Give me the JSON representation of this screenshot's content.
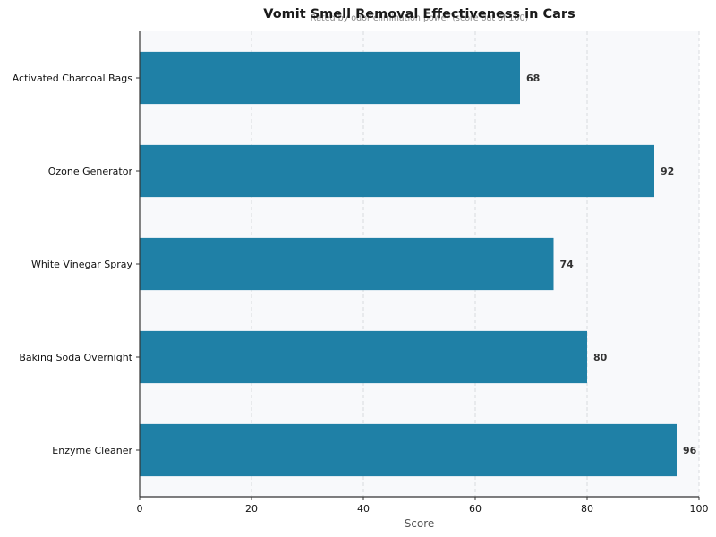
{
  "chart_data": {
    "type": "bar",
    "orientation": "horizontal",
    "title": "Vomit Smell Removal Effectiveness in Cars",
    "subtitle": "Rated by odor elimination power (score out of 100)",
    "xlabel": "Score",
    "ylabel": "",
    "xlim": [
      0,
      100
    ],
    "xticks": [
      0,
      20,
      40,
      60,
      80,
      100
    ],
    "categories": [
      "Activated Charcoal Bags",
      "Ozone Generator",
      "White Vinegar Spray",
      "Baking Soda Overnight",
      "Enzyme Cleaner"
    ],
    "values": [
      68,
      92,
      74,
      80,
      96
    ],
    "grid": "x-dashed",
    "bar_color": "#1f80a6",
    "plot_background": "#f8f9fb"
  }
}
